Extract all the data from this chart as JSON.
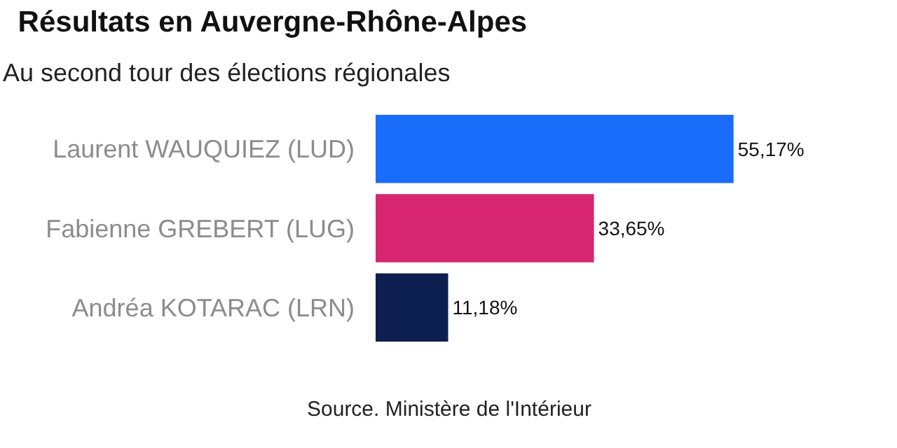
{
  "chart_data": {
    "type": "bar",
    "orientation": "horizontal",
    "title": "Résultats en Auvergne-Rhône-Alpes",
    "subtitle": "Au second tour des élections régionales",
    "categories": [
      "Laurent WAUQUIEZ (LUD)",
      "Fabienne GREBERT (LUG)",
      "Andréa KOTARAC (LRN)"
    ],
    "values": [
      55.17,
      33.65,
      11.18
    ],
    "colors": [
      "#1a6dfa",
      "#d6266f",
      "#0c1f4e"
    ],
    "value_labels": [
      "55,17%",
      "33,65%",
      "11,18%"
    ],
    "annotations": [
      "Source. Ministère de l'Intérieur"
    ]
  }
}
